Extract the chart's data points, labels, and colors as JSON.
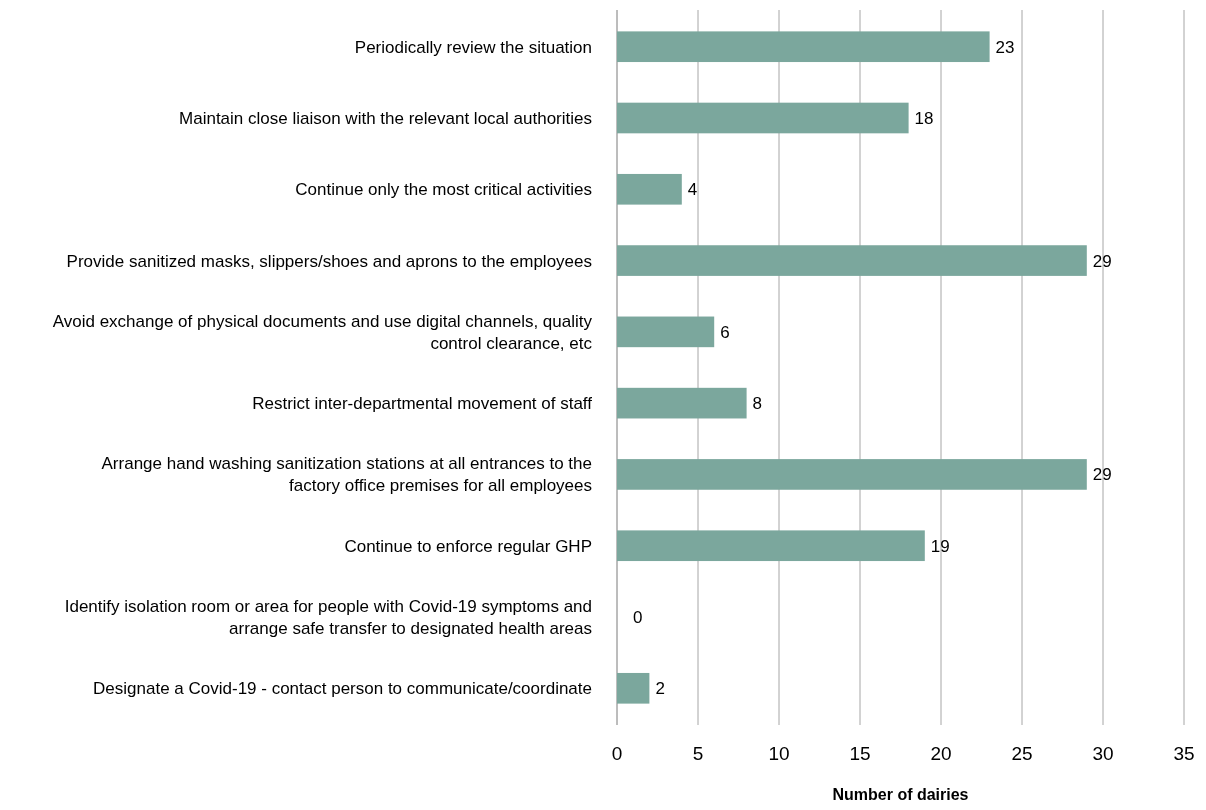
{
  "chart_data": {
    "type": "bar",
    "orientation": "horizontal",
    "xlabel": "Number of dairies",
    "categories": [
      "Periodically review the situation",
      "Maintain close liaison with the relevant local authorities",
      "Continue only the most critical activities",
      "Provide sanitized masks, slippers/shoes and aprons to the employees",
      "Avoid exchange of physical documents and use digital channels, quality control clearance, etc",
      "Restrict inter-departmental movement of staff",
      "Arrange hand washing sanitization stations at all entrances to the factory office premises for all employees",
      "Continue to enforce regular GHP",
      "Identify isolation room or area for people with Covid-19 symptoms and arrange safe transfer to designated health areas",
      "Designate a Covid-19 - contact person to communicate/coordinate"
    ],
    "values": [
      23,
      18,
      4,
      29,
      6,
      8,
      29,
      19,
      0,
      2
    ],
    "color": "#7ba79d",
    "xlim": [
      0,
      35
    ],
    "xticks": [
      0,
      5,
      10,
      15,
      20,
      25,
      30,
      35
    ],
    "grid": "x",
    "data_labels": true
  }
}
